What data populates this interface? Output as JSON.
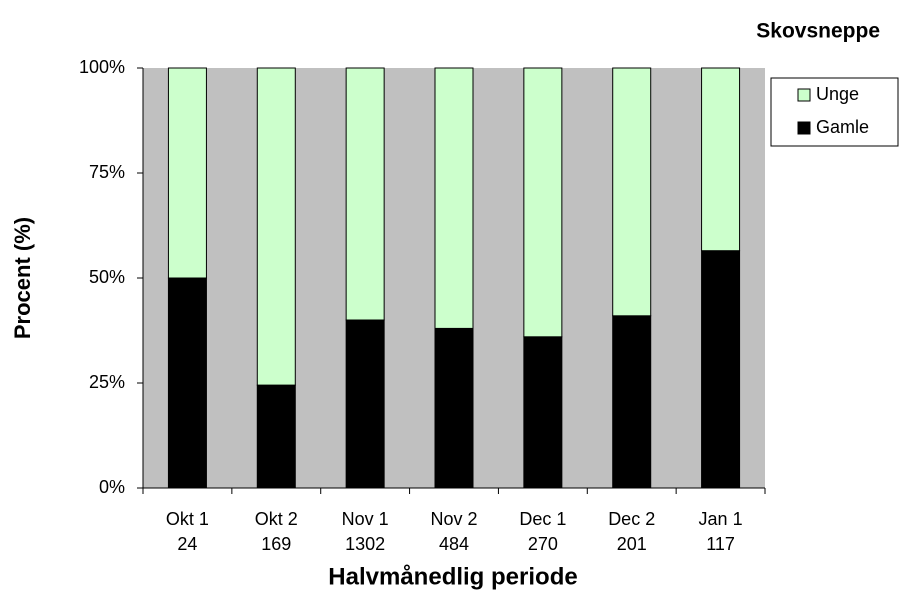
{
  "chart_data": {
    "type": "bar",
    "stacked": true,
    "title": "Skovsneppe",
    "xlabel": "Halvmånedlig periode",
    "ylabel": "Procent (%)",
    "categories": [
      "Okt 1",
      "Okt 2",
      "Nov 1",
      "Nov 2",
      "Dec 1",
      "Dec 2",
      "Jan 1"
    ],
    "sample_sizes": [
      24,
      169,
      1302,
      484,
      270,
      201,
      117
    ],
    "series": [
      {
        "name": "Gamle",
        "color": "#000000",
        "values": [
          50,
          24.5,
          40,
          38,
          36,
          41,
          56.5
        ]
      },
      {
        "name": "Unge",
        "color": "#ccffcc",
        "values": [
          50,
          75.5,
          60,
          62,
          64,
          59,
          43.5
        ]
      }
    ],
    "ylim": [
      0,
      100
    ],
    "yticks": [
      {
        "value": 0,
        "label": "0%"
      },
      {
        "value": 25,
        "label": "25%"
      },
      {
        "value": 50,
        "label": "50%"
      },
      {
        "value": 75,
        "label": "75%"
      },
      {
        "value": 100,
        "label": "100%"
      }
    ],
    "background": "#c0c0c0",
    "legend": "right"
  }
}
